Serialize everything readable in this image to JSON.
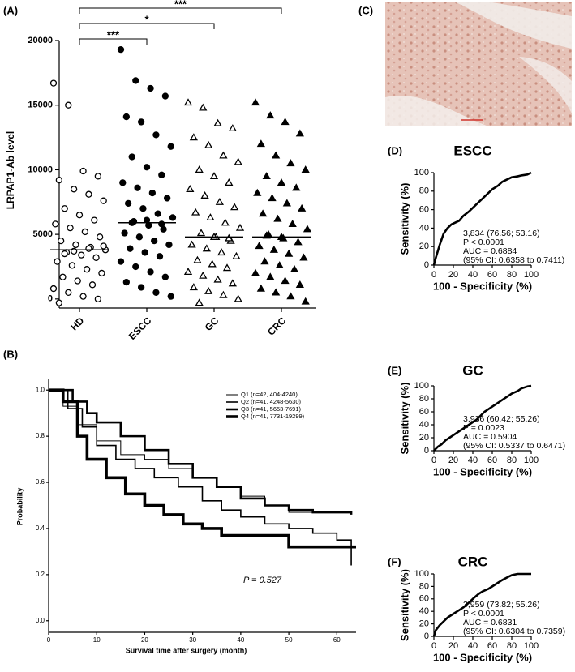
{
  "chart_data": [
    {
      "type": "dotplot",
      "label": "(A)",
      "y_label": "LRPAP1-Ab level",
      "categories": [
        "HD",
        "ESCC",
        "GC",
        "CRC"
      ],
      "markers": [
        "open-circle",
        "filled-circle",
        "open-triangle",
        "filled-triangle"
      ],
      "values": [
        [
          16700,
          15000,
          9900,
          9500,
          9200,
          8500,
          8100,
          7600,
          7000,
          6500,
          6100,
          5800,
          5500,
          5200,
          4800,
          4500,
          4200,
          4000,
          3800,
          3600,
          3400,
          3200,
          2900,
          2600,
          2300,
          2000,
          1700,
          1400,
          1100,
          800,
          500,
          200,
          0,
          -300,
          3700,
          3900,
          4100,
          3500
        ],
        [
          19300,
          16900,
          16300,
          15700,
          14100,
          13700,
          12700,
          11800,
          11000,
          10200,
          9600,
          9000,
          8600,
          8200,
          7800,
          7400,
          7000,
          6600,
          6300,
          6000,
          5700,
          5400,
          5100,
          4800,
          4500,
          4200,
          3900,
          3600,
          3300,
          2900,
          2500,
          2100,
          1700,
          1300,
          900,
          500,
          200,
          5900,
          6100,
          5800
        ],
        [
          15200,
          14800,
          13600,
          13200,
          12500,
          11900,
          11100,
          10600,
          10000,
          9500,
          9000,
          8500,
          8000,
          7500,
          7100,
          6700,
          6300,
          5900,
          5500,
          5100,
          4800,
          4500,
          4200,
          3900,
          3600,
          3300,
          3000,
          2700,
          2400,
          2100,
          1800,
          1500,
          1200,
          900,
          600,
          300,
          0,
          -300,
          4800,
          4700
        ],
        [
          15200,
          14200,
          13700,
          12800,
          12000,
          11100,
          10500,
          10000,
          9500,
          9000,
          8600,
          8200,
          7800,
          7400,
          7000,
          6600,
          6200,
          5800,
          5400,
          5000,
          4700,
          4400,
          4100,
          3800,
          3500,
          3200,
          2900,
          2600,
          2300,
          2000,
          1700,
          1400,
          1100,
          800,
          500,
          200,
          -200,
          4900,
          4800
        ]
      ],
      "means": [
        3800,
        5900,
        4800,
        4800
      ],
      "comparisons": [
        {
          "groups": [
            "HD",
            "ESCC"
          ],
          "label": "***"
        },
        {
          "groups": [
            "HD",
            "GC"
          ],
          "label": "*"
        },
        {
          "groups": [
            "HD",
            "CRC"
          ],
          "label": "***"
        }
      ],
      "ylim": [
        -700,
        20000
      ],
      "yticks": [
        0,
        5000,
        10000,
        15000,
        20000
      ]
    },
    {
      "type": "step",
      "label": "(B)",
      "x_label": "Survival time after surgery (month)",
      "y_label": "Probability",
      "annotation": "P = 0.527",
      "legend": "upper right",
      "xlim": [
        0,
        64
      ],
      "ylim": [
        -0.05,
        1.05
      ],
      "xticks": [
        0,
        10,
        20,
        30,
        40,
        50,
        60
      ],
      "yticks": [
        {
          "value": 0,
          "label": "0.0"
        },
        0.2,
        0.4,
        0.6,
        0.8,
        {
          "value": 1,
          "label": "1.0"
        }
      ],
      "series": [
        {
          "name": "Q1 (n=42,  404-4240)",
          "color": "#000000",
          "width": 1,
          "x": [
            0,
            3,
            6,
            10,
            15,
            20,
            25,
            30,
            35,
            40,
            45,
            50,
            63
          ],
          "values": [
            1,
            0.93,
            0.85,
            0.78,
            0.72,
            0.7,
            0.66,
            0.62,
            0.58,
            0.54,
            0.5,
            0.47,
            0.47
          ]
        },
        {
          "name": "Q2 (n=41,  4248-5630)",
          "color": "#000000",
          "width": 1.6,
          "x": [
            0,
            4,
            7,
            10,
            14,
            18,
            22,
            27,
            32,
            36,
            40,
            45,
            50,
            55,
            60,
            63
          ],
          "values": [
            1,
            0.92,
            0.84,
            0.76,
            0.7,
            0.66,
            0.62,
            0.58,
            0.52,
            0.48,
            0.45,
            0.42,
            0.4,
            0.38,
            0.35,
            0.24
          ]
        },
        {
          "name": "Q3 (n=41,  5653-7691)",
          "color": "#000000",
          "width": 2.6,
          "x": [
            0,
            5,
            8,
            10,
            15,
            20,
            25,
            30,
            35,
            40,
            45,
            50,
            55,
            63
          ],
          "values": [
            1,
            0.95,
            0.9,
            0.86,
            0.8,
            0.74,
            0.68,
            0.62,
            0.58,
            0.53,
            0.5,
            0.48,
            0.47,
            0.46
          ]
        },
        {
          "name": "Q4 (n=41,  7731-19299)",
          "color": "#000000",
          "width": 3.6,
          "x": [
            0,
            3,
            6,
            8,
            12,
            16,
            20,
            24,
            28,
            32,
            36,
            48,
            50,
            64
          ],
          "values": [
            1,
            0.95,
            0.8,
            0.7,
            0.62,
            0.55,
            0.5,
            0.46,
            0.42,
            0.4,
            0.37,
            0.37,
            0.32,
            0.32
          ]
        }
      ]
    },
    {
      "type": "image",
      "label": "(C)"
    },
    {
      "type": "line",
      "label": "(D)",
      "title": "ESCC",
      "x_label": "100 - Specificity (%)",
      "y_label": "Sensitivity (%)",
      "xlim": [
        0,
        100
      ],
      "ylim": [
        0,
        100
      ],
      "xticks": [
        0,
        20,
        40,
        60,
        80,
        100
      ],
      "yticks": [
        0,
        20,
        40,
        60,
        80,
        100
      ],
      "color": "#000000",
      "x": [
        0,
        2,
        4,
        6,
        8,
        10,
        14,
        18,
        22,
        26,
        30,
        36,
        40,
        46,
        50,
        56,
        60,
        66,
        70,
        76,
        80,
        86,
        90,
        96,
        100
      ],
      "values": [
        0,
        8,
        15,
        22,
        28,
        34,
        40,
        44,
        46,
        48,
        53,
        58,
        62,
        68,
        72,
        78,
        82,
        86,
        90,
        93,
        95,
        96,
        97,
        98,
        100
      ],
      "annotation": [
        "3,834 (76.56; 53.16)",
        "P < 0.0001",
        "AUC = 0.6884",
        "(95% CI: 0.6358 to 0.7411)"
      ]
    },
    {
      "type": "line",
      "label": "(E)",
      "title": "GC",
      "x_label": "100 - Specificity (%)",
      "y_label": "Sensitivity (%)",
      "xlim": [
        0,
        100
      ],
      "ylim": [
        0,
        100
      ],
      "xticks": [
        0,
        20,
        40,
        60,
        80,
        100
      ],
      "yticks": [
        0,
        20,
        40,
        60,
        80,
        100
      ],
      "color": "#000000",
      "x": [
        0,
        4,
        8,
        12,
        16,
        20,
        26,
        30,
        36,
        40,
        44,
        48,
        52,
        56,
        60,
        66,
        70,
        76,
        80,
        86,
        90,
        96,
        100
      ],
      "values": [
        0,
        6,
        10,
        16,
        20,
        24,
        30,
        34,
        40,
        44,
        48,
        54,
        60,
        64,
        68,
        74,
        78,
        84,
        88,
        92,
        96,
        99,
        100
      ],
      "annotation": [
        "3,936 (60.42; 55.26)",
        "P = 0.0023",
        "AUC = 0.5904",
        "(95% CI: 0.5337 to 0.6471)"
      ]
    },
    {
      "type": "line",
      "label": "(F)",
      "title": "CRC",
      "x_label": "100 - Specificity (%)",
      "y_label": "Sensitivity (%)",
      "xlim": [
        0,
        100
      ],
      "ylim": [
        0,
        100
      ],
      "xticks": [
        0,
        20,
        40,
        60,
        80,
        100
      ],
      "yticks": [
        0,
        20,
        40,
        60,
        80,
        100
      ],
      "color": "#000000",
      "x": [
        0,
        2,
        6,
        10,
        14,
        20,
        26,
        30,
        36,
        40,
        46,
        50,
        56,
        60,
        66,
        70,
        76,
        80,
        86,
        90,
        100
      ],
      "values": [
        0,
        10,
        18,
        24,
        30,
        36,
        42,
        46,
        54,
        60,
        68,
        72,
        76,
        80,
        86,
        90,
        95,
        98,
        100,
        100,
        100
      ],
      "annotation": [
        "3,959 (73.82; 55.26)",
        "P < 0.0001",
        "AUC = 0.6831",
        "(95% CI: 0.6304 to 0.7359)"
      ]
    }
  ]
}
